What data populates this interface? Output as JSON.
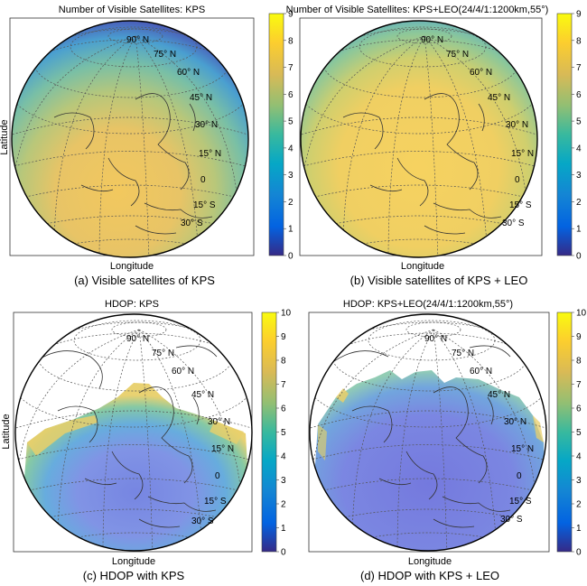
{
  "panels": [
    {
      "id": "a",
      "title": "Number of Visible Satellites: KPS",
      "caption": "(a) Visible satellites of KPS",
      "xlabel": "Longitude",
      "ylabel": "Latitude",
      "colorbar": {
        "min": 0,
        "max": 9,
        "ticks": [
          "0",
          "1",
          "2",
          "3",
          "4",
          "5",
          "6",
          "7",
          "8",
          "9"
        ]
      },
      "lat_labels": [
        "90° N",
        "75° N",
        "60° N",
        "45° N",
        "30° N",
        "15° N",
        "0",
        "15° S",
        "30° S"
      ]
    },
    {
      "id": "b",
      "title": "Number of Visible Satellites: KPS+LEO(24/4/1:1200km,55°)",
      "caption": "(b) Visible satellites of KPS + LEO",
      "xlabel": "Longitude",
      "ylabel": "",
      "colorbar": {
        "min": 0,
        "max": 9,
        "ticks": [
          "0",
          "1",
          "2",
          "3",
          "4",
          "5",
          "6",
          "7",
          "8",
          "9"
        ]
      },
      "lat_labels": [
        "90° N",
        "75° N",
        "60° N",
        "45° N",
        "30° N",
        "15° N",
        "0",
        "15° S",
        "30° S"
      ]
    },
    {
      "id": "c",
      "title": "HDOP: KPS",
      "caption": "(c) HDOP with KPS",
      "xlabel": "Longitude",
      "ylabel": "Latitude",
      "colorbar": {
        "min": 0,
        "max": 10,
        "ticks": [
          "0",
          "1",
          "2",
          "3",
          "4",
          "5",
          "6",
          "7",
          "8",
          "9",
          "10"
        ]
      },
      "lat_labels": [
        "90° N",
        "75° N",
        "60° N",
        "45° N",
        "30° N",
        "15° N",
        "0",
        "15° S",
        "30° S"
      ]
    },
    {
      "id": "d",
      "title": "HDOP: KPS+LEO(24/4/1:1200km,55°)",
      "caption": "(d) HDOP with KPS + LEO",
      "xlabel": "Longitude",
      "ylabel": "",
      "colorbar": {
        "min": 0,
        "max": 10,
        "ticks": [
          "0",
          "1",
          "2",
          "3",
          "4",
          "5",
          "6",
          "7",
          "8",
          "9",
          "10"
        ]
      },
      "lat_labels": [
        "90° N",
        "75° N",
        "60° N",
        "45° N",
        "30° N",
        "15° N",
        "0",
        "15° S",
        "30° S"
      ]
    }
  ],
  "chart_data": [
    {
      "type": "heatmap",
      "title": "Number of Visible Satellites: KPS",
      "xlabel": "Longitude",
      "ylabel": "Latitude",
      "colorbar_range": [
        0,
        9
      ]
    },
    {
      "type": "heatmap",
      "title": "Number of Visible Satellites: KPS+LEO(24/4/1:1200km,55°)",
      "xlabel": "Longitude",
      "ylabel": "",
      "colorbar_range": [
        0,
        9
      ]
    },
    {
      "type": "heatmap",
      "title": "HDOP: KPS",
      "xlabel": "Longitude",
      "ylabel": "Latitude",
      "colorbar_range": [
        0,
        10
      ]
    },
    {
      "type": "heatmap",
      "title": "HDOP: KPS+LEO(24/4/1:1200km,55°)",
      "xlabel": "Longitude",
      "ylabel": "",
      "colorbar_range": [
        0,
        10
      ]
    }
  ]
}
